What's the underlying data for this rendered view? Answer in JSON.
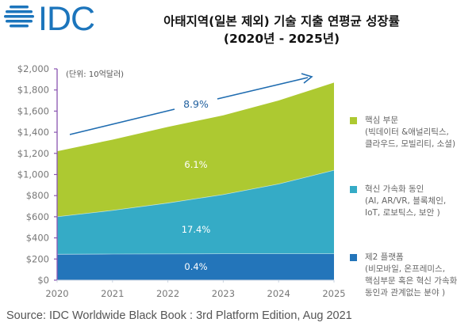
{
  "logo": {
    "text": "IDC",
    "color": "#1c75bc"
  },
  "title": {
    "line1": "아태지역(일본 제외) 기술 지출 연평균 성장률",
    "line2": "(2020년 - 2025년)"
  },
  "unit_note": "(단위: 10억달러)",
  "source": "Source: IDC Worldwide Black Book : 3rd Platform Edition, Aug 2021",
  "chart_data": {
    "type": "area",
    "stacked": true,
    "title": "아태지역(일본 제외) 기술 지출 연평균 성장률 (2020년 - 2025년)",
    "xlabel": "",
    "ylabel": "",
    "x": [
      2020,
      2021,
      2022,
      2023,
      2024,
      2025
    ],
    "x_tick_labels": [
      "2020",
      "2021",
      "2022",
      "2023",
      "2024",
      "2025"
    ],
    "ylim": [
      0,
      2000
    ],
    "y_ticks": [
      0,
      200,
      400,
      600,
      800,
      1000,
      1200,
      1400,
      1600,
      1800,
      2000
    ],
    "y_tick_labels": [
      "$0",
      "$200",
      "$400",
      "$600",
      "$800",
      "$1,000",
      "$1,200",
      "$1,400",
      "$1,600",
      "$1,800",
      "$2,000"
    ],
    "series": [
      {
        "name": "제2 플랫폼",
        "values": [
          245,
          247,
          248,
          250,
          250,
          250
        ],
        "color": "#2375ba",
        "cagr_label": "0.4%"
      },
      {
        "name": "혁신 가속화 동인",
        "values": [
          355,
          413,
          482,
          560,
          660,
          790
        ],
        "color": "#35abc6",
        "cagr_label": "17.4%"
      },
      {
        "name": "핵심 부문",
        "values": [
          620,
          670,
          720,
          750,
          790,
          830
        ],
        "color": "#adc931",
        "cagr_label": "6.1%"
      }
    ],
    "total_cagr_label": "8.9%",
    "arrow_color": "#1f6cb0",
    "axis_color": "#8a55b0",
    "grid": false,
    "legend_position": "right"
  },
  "legend": [
    {
      "color": "#adc931",
      "lines": [
        "핵심 부문",
        "(빅데이터 &애널리틱스,",
        "클라우드, 모빌리티, 소셜)"
      ]
    },
    {
      "color": "#35abc6",
      "lines": [
        "혁신 가속화 동인",
        "(AI, AR/VR, 블록체인,",
        "IoT, 로보틱스, 보안 )"
      ]
    },
    {
      "color": "#2375ba",
      "lines": [
        "제2 플랫폼",
        "(비모바일, 온프레미스,",
        "핵심부문 혹은 혁신 가속화",
        "동인과 관계없는 분야 )"
      ]
    }
  ]
}
